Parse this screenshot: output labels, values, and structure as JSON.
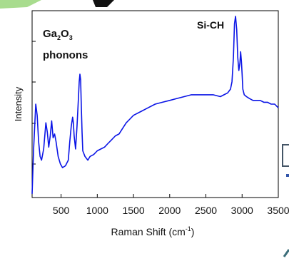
{
  "chart_data": {
    "type": "line",
    "xlabel": "Raman Shift (cm",
    "xlabel_sup": "-1",
    "xlabel_close": ")",
    "ylabel": "Intensity",
    "xlim": [
      100,
      3500
    ],
    "ylim": [
      0,
      1
    ],
    "x_ticks": [
      500,
      1000,
      1500,
      2000,
      2500,
      3000,
      3500
    ],
    "x_tick_labels": [
      "500",
      "1000",
      "1500",
      "2000",
      "2500",
      "3000",
      "3500"
    ],
    "grid": false,
    "line_color": "#0a14e6",
    "annotations": {
      "ga2o3": {
        "base1": "Ga",
        "sub1": "2",
        "base2": "O",
        "sub2": "3",
        "line2": "phonons"
      },
      "sich": "Si-CH"
    },
    "series": [
      {
        "x": [
          100,
          120,
          150,
          170,
          190,
          210,
          230,
          260,
          290,
          310,
          330,
          350,
          370,
          390,
          410,
          430,
          460,
          490,
          520,
          560,
          600,
          620,
          640,
          660,
          670,
          680,
          700,
          720,
          740,
          750,
          760,
          770,
          780,
          790,
          800,
          830,
          870,
          900,
          950,
          1000,
          1050,
          1100,
          1150,
          1200,
          1250,
          1300,
          1350,
          1400,
          1450,
          1500,
          1600,
          1700,
          1800,
          1900,
          2000,
          2100,
          2200,
          2300,
          2400,
          2500,
          2600,
          2700,
          2750,
          2800,
          2840,
          2860,
          2880,
          2895,
          2910,
          2925,
          2940,
          2955,
          2970,
          2980,
          2990,
          3000,
          3010,
          3030,
          3060,
          3100,
          3150,
          3200,
          3250,
          3300,
          3350,
          3400,
          3450,
          3500
        ],
        "y": [
          0.02,
          0.25,
          0.5,
          0.44,
          0.3,
          0.22,
          0.2,
          0.26,
          0.4,
          0.35,
          0.27,
          0.33,
          0.41,
          0.32,
          0.34,
          0.3,
          0.22,
          0.18,
          0.16,
          0.17,
          0.2,
          0.3,
          0.38,
          0.43,
          0.4,
          0.33,
          0.26,
          0.38,
          0.53,
          0.62,
          0.66,
          0.63,
          0.48,
          0.35,
          0.25,
          0.22,
          0.2,
          0.22,
          0.23,
          0.25,
          0.26,
          0.27,
          0.29,
          0.31,
          0.33,
          0.34,
          0.37,
          0.4,
          0.42,
          0.44,
          0.46,
          0.48,
          0.5,
          0.51,
          0.52,
          0.53,
          0.54,
          0.55,
          0.55,
          0.55,
          0.55,
          0.54,
          0.55,
          0.56,
          0.58,
          0.62,
          0.75,
          0.93,
          0.97,
          0.9,
          0.75,
          0.68,
          0.72,
          0.78,
          0.73,
          0.66,
          0.58,
          0.55,
          0.54,
          0.53,
          0.52,
          0.52,
          0.52,
          0.51,
          0.51,
          0.5,
          0.5,
          0.48
        ]
      }
    ]
  }
}
